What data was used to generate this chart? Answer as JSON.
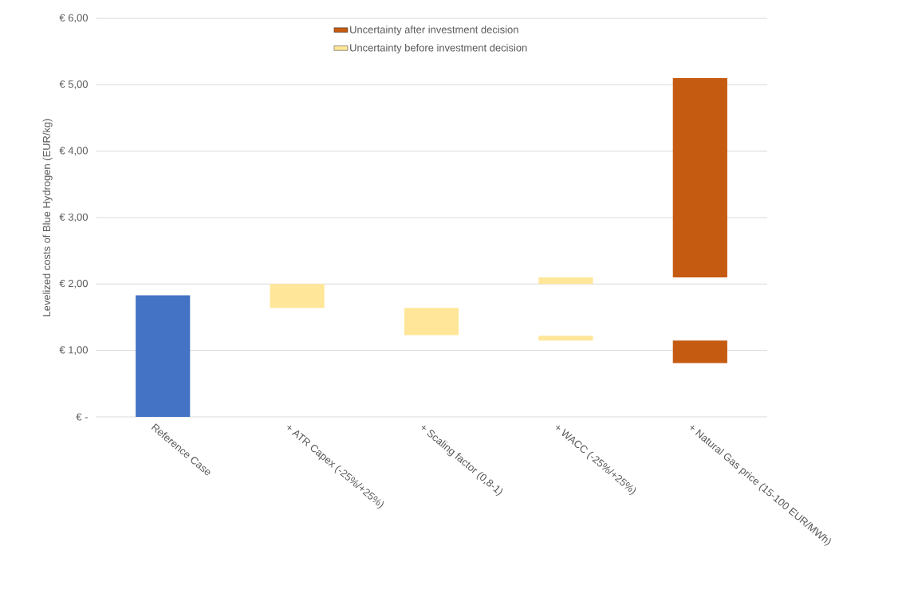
{
  "chart_data": {
    "type": "bar",
    "ylabel": "Levelized costs of Blue Hydrogen (EUR/kg)",
    "categories": [
      "Reference Case",
      "+ ATR Capex (-25%/+25%)",
      "+ Scaling factor (0,8-1)",
      "+ WACC (-25%/+25%)",
      "+ Natural Gas price (15-100 EUR/MWh)"
    ],
    "series": [
      {
        "color": "#4472c4",
        "values": [
          1.83,
          null,
          null,
          null,
          null
        ],
        "base": [
          0,
          null,
          null,
          null,
          null
        ]
      },
      {
        "name": "Uncertainty after investment decision",
        "color": "#c55a11",
        "values": [
          null,
          null,
          null,
          null,
          3.0
        ],
        "base": [
          null,
          null,
          null,
          null,
          2.1
        ]
      },
      {
        "name": "Uncertainty before investment decision",
        "color": "#ffe699",
        "values": [
          null,
          0.36,
          0.41,
          0.1,
          null
        ],
        "base": [
          null,
          1.64,
          1.23,
          2.0,
          null
        ]
      },
      {
        "color": "#ffe699",
        "values": [
          null,
          null,
          null,
          0.07,
          null
        ],
        "base": [
          null,
          null,
          null,
          1.15,
          null
        ]
      },
      {
        "color": "#c55a11",
        "values": [
          null,
          null,
          null,
          null,
          0.34
        ],
        "base": [
          null,
          null,
          null,
          null,
          0.81
        ]
      }
    ],
    "ylim": [
      0,
      6
    ],
    "yticks": [
      {
        "value": 0,
        "label": "€ -"
      },
      {
        "value": 1,
        "label": "€ 1,00"
      },
      {
        "value": 2,
        "label": "€ 2,00"
      },
      {
        "value": 3,
        "label": "€ 3,00"
      },
      {
        "value": 4,
        "label": "€ 4,00"
      },
      {
        "value": 5,
        "label": "€ 5,00"
      },
      {
        "value": 6,
        "label": "€ 6,00"
      }
    ],
    "grid": "y",
    "legend": "top"
  }
}
